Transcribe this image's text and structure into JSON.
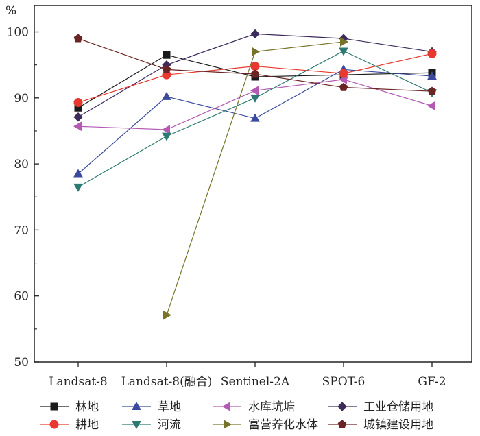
{
  "chart_data": {
    "type": "line",
    "ylabel": "%",
    "ylim": [
      50,
      104
    ],
    "yticks": [
      50,
      60,
      70,
      80,
      90,
      100
    ],
    "categories": [
      "Landsat-8",
      "Landsat-8(融合)",
      "Sentinel-2A",
      "SPOT-6",
      "GF-2"
    ],
    "grid": false,
    "legend_position": "bottom",
    "series": [
      {
        "name": "林地",
        "color": "#1a1a1a",
        "marker": "square",
        "values": [
          88.5,
          96.5,
          93.2,
          93.5,
          93.8
        ]
      },
      {
        "name": "草地",
        "color": "#3b4a9c",
        "marker": "triangle-up",
        "values": [
          78.5,
          90.2,
          86.9,
          94.3,
          93.3
        ]
      },
      {
        "name": "水库坑塘",
        "color": "#b45ab4",
        "marker": "triangle-left",
        "values": [
          85.7,
          85.2,
          91.1,
          92.8,
          88.8
        ]
      },
      {
        "name": "工业仓储用地",
        "color": "#3d2b5c",
        "marker": "diamond",
        "values": [
          87.1,
          95.0,
          99.7,
          99.0,
          97.0
        ]
      },
      {
        "name": "耕地",
        "color": "#e8382f",
        "marker": "circle",
        "values": [
          89.3,
          93.5,
          94.8,
          93.7,
          96.7
        ]
      },
      {
        "name": "河流",
        "color": "#2d7a73",
        "marker": "triangle-down",
        "values": [
          76.5,
          84.2,
          90.0,
          97.1,
          90.8
        ]
      },
      {
        "name": "富营养化水体",
        "color": "#77742a",
        "marker": "triangle-right",
        "values": [
          null,
          57.1,
          97.0,
          98.5,
          null
        ]
      },
      {
        "name": "城镇建设用地",
        "color": "#6b2424",
        "marker": "pentagon",
        "values": [
          99.0,
          94.3,
          93.6,
          91.6,
          91.0
        ]
      }
    ]
  }
}
